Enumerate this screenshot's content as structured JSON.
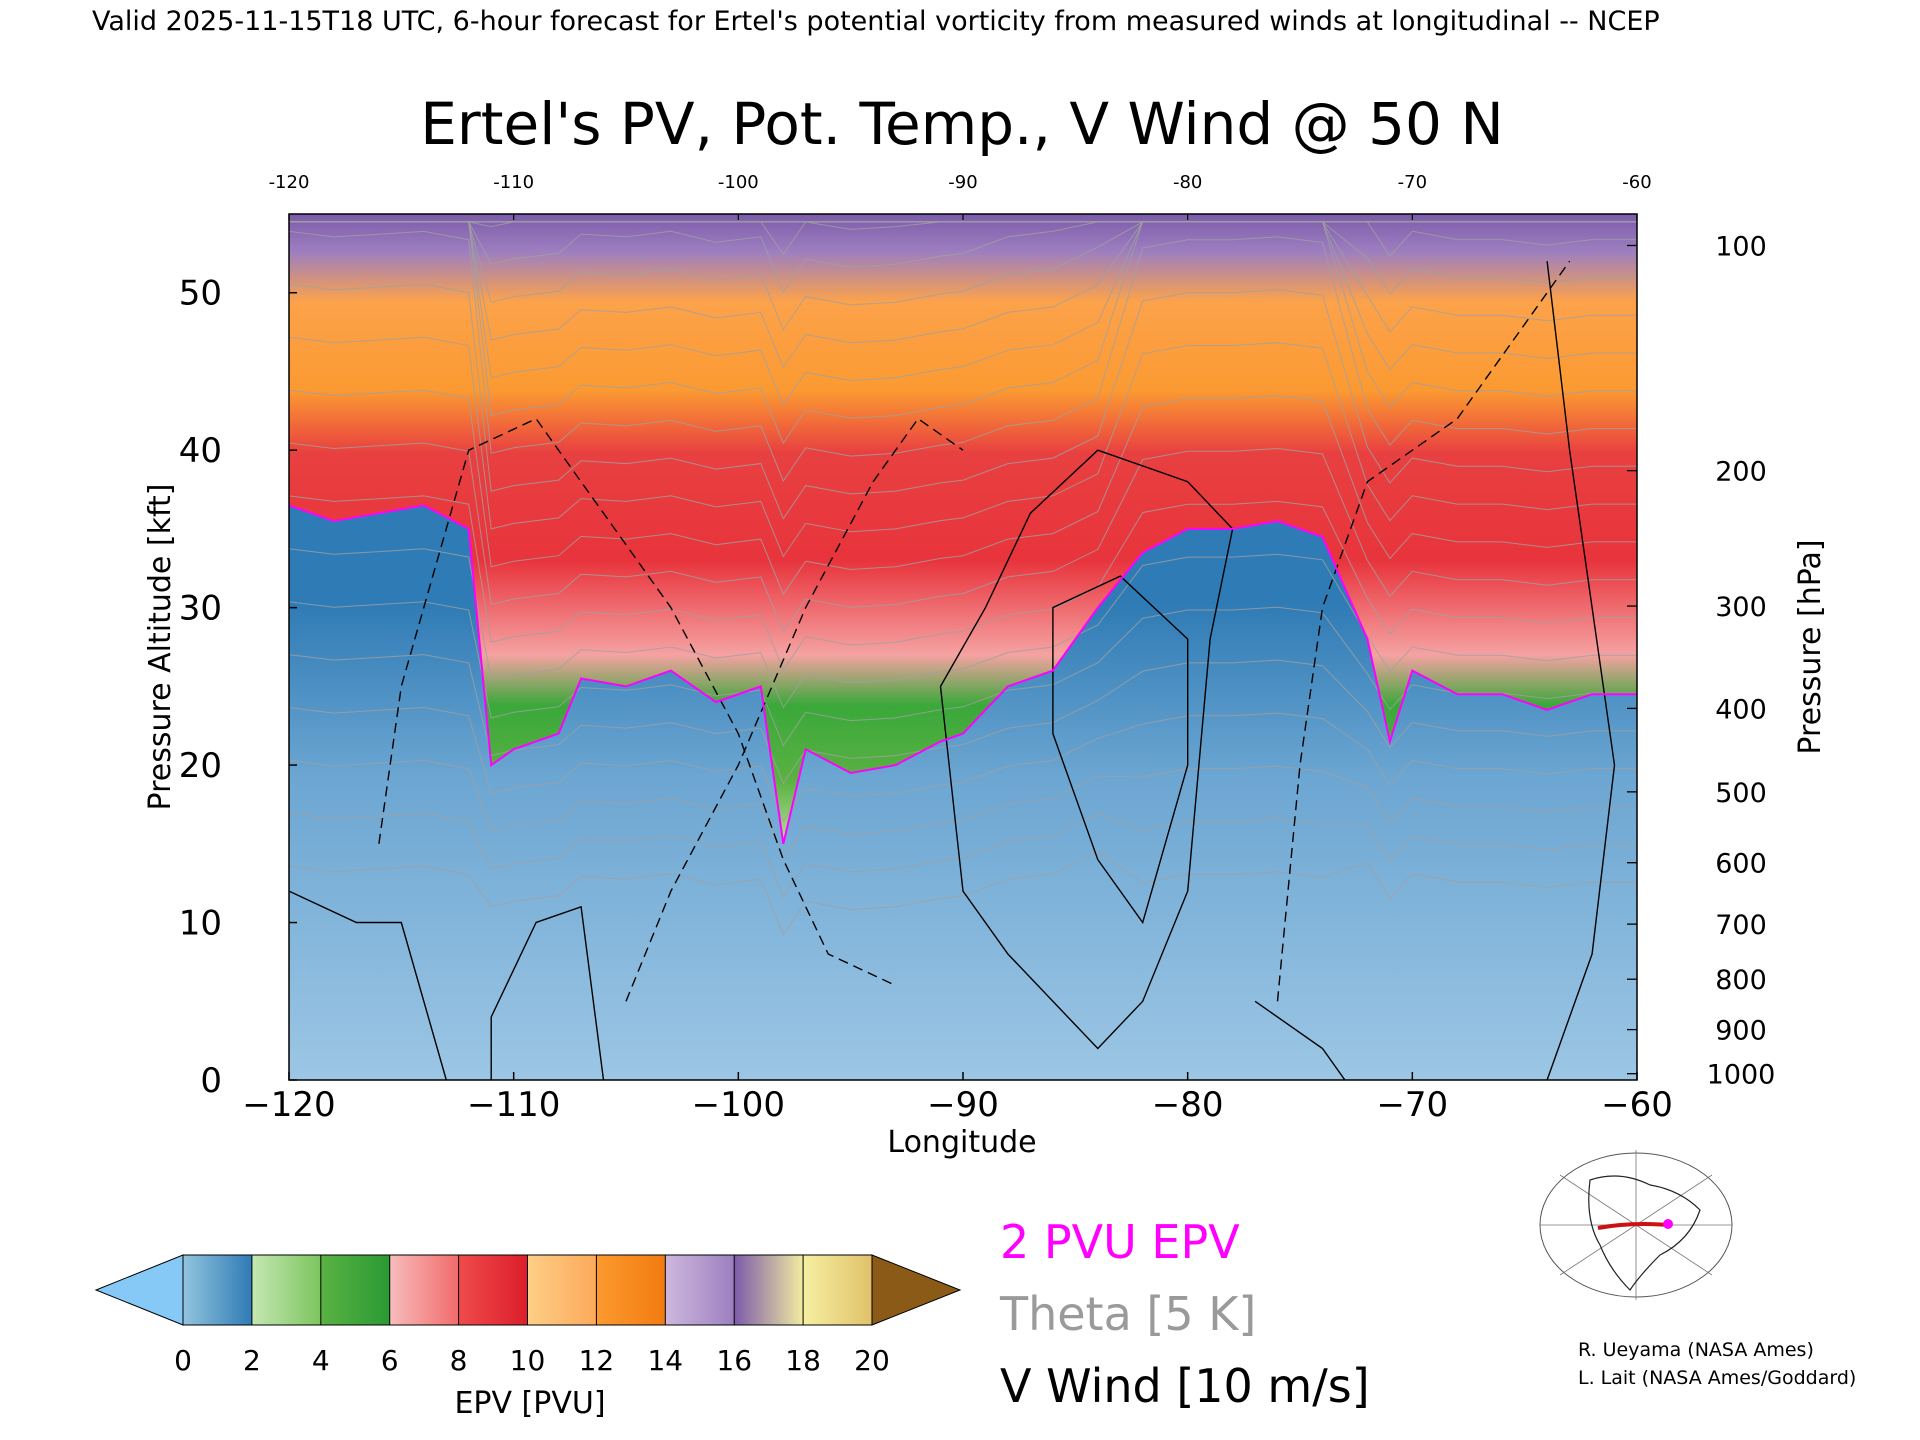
{
  "header": "Valid 2025-11-15T18 UTC, 6-hour forecast for Ertel's potential vorticity from measured winds at longitudinal -- NCEP",
  "chart_data": {
    "type": "heatmap",
    "title": "Ertel's PV, Pot. Temp., V Wind @ 50 N",
    "xlabel": "Longitude",
    "ylabel": "Pressure Altitude [kft]",
    "y2label": "Pressure [hPa]",
    "xlim": [
      -120,
      -60
    ],
    "ylim": [
      0,
      55
    ],
    "x_ticks": [
      -120,
      -110,
      -100,
      -90,
      -80,
      -70,
      -60
    ],
    "y_ticks": [
      0,
      10,
      20,
      30,
      40,
      50
    ],
    "pressure_ticks": [
      {
        "label": "100",
        "kft": 53.0
      },
      {
        "label": "200",
        "kft": 38.7
      },
      {
        "label": "300",
        "kft": 30.1
      },
      {
        "label": "400",
        "kft": 23.6
      },
      {
        "label": "500",
        "kft": 18.3
      },
      {
        "label": "600",
        "kft": 13.8
      },
      {
        "label": "700",
        "kft": 9.9
      },
      {
        "label": "800",
        "kft": 6.4
      },
      {
        "label": "900",
        "kft": 3.2
      },
      {
        "label": "1000",
        "kft": 0.4
      }
    ],
    "tropopause_2pvu_kft": [
      {
        "lon": -120,
        "kft": 36.5
      },
      {
        "lon": -118,
        "kft": 35.5
      },
      {
        "lon": -116,
        "kft": 36.0
      },
      {
        "lon": -114,
        "kft": 36.5
      },
      {
        "lon": -112,
        "kft": 35.0
      },
      {
        "lon": -111,
        "kft": 20.0
      },
      {
        "lon": -110,
        "kft": 21.0
      },
      {
        "lon": -108,
        "kft": 22.0
      },
      {
        "lon": -107,
        "kft": 25.5
      },
      {
        "lon": -105,
        "kft": 25.0
      },
      {
        "lon": -103,
        "kft": 26.0
      },
      {
        "lon": -101,
        "kft": 24.0
      },
      {
        "lon": -99,
        "kft": 25.0
      },
      {
        "lon": -98,
        "kft": 15.0
      },
      {
        "lon": -97,
        "kft": 21.0
      },
      {
        "lon": -95,
        "kft": 19.5
      },
      {
        "lon": -93,
        "kft": 20.0
      },
      {
        "lon": -91,
        "kft": 21.5
      },
      {
        "lon": -90,
        "kft": 22.0
      },
      {
        "lon": -88,
        "kft": 25.0
      },
      {
        "lon": -86,
        "kft": 26.0
      },
      {
        "lon": -84,
        "kft": 30.0
      },
      {
        "lon": -82,
        "kft": 33.5
      },
      {
        "lon": -80,
        "kft": 35.0
      },
      {
        "lon": -78,
        "kft": 35.0
      },
      {
        "lon": -76,
        "kft": 35.5
      },
      {
        "lon": -74,
        "kft": 34.5
      },
      {
        "lon": -72,
        "kft": 28.0
      },
      {
        "lon": -71,
        "kft": 21.5
      },
      {
        "lon": -70,
        "kft": 26.0
      },
      {
        "lon": -68,
        "kft": 24.5
      },
      {
        "lon": -66,
        "kft": 24.5
      },
      {
        "lon": -64,
        "kft": 23.5
      },
      {
        "lon": -62,
        "kft": 24.5
      },
      {
        "lon": -60,
        "kft": 24.5
      }
    ],
    "colorbar": {
      "label": "EPV [PVU]",
      "ticks": [
        0,
        2,
        4,
        6,
        8,
        10,
        12,
        14,
        16,
        18,
        20
      ],
      "segments": [
        {
          "from": 0,
          "to": 2,
          "colors": [
            "#92c5de",
            "#2f7bb5"
          ]
        },
        {
          "from": 2,
          "to": 4,
          "colors": [
            "#c5e7b2",
            "#7cc55e"
          ]
        },
        {
          "from": 4,
          "to": 6,
          "colors": [
            "#5ab242",
            "#2a9a34"
          ]
        },
        {
          "from": 6,
          "to": 8,
          "colors": [
            "#f8bcbc",
            "#f26b6b"
          ]
        },
        {
          "from": 8,
          "to": 10,
          "colors": [
            "#ef4b4b",
            "#dc1e2b"
          ]
        },
        {
          "from": 10,
          "to": 12,
          "colors": [
            "#fdcf87",
            "#fda95a"
          ]
        },
        {
          "from": 12,
          "to": 14,
          "colors": [
            "#fc9a2f",
            "#f27b10"
          ]
        },
        {
          "from": 14,
          "to": 16,
          "colors": [
            "#cdb8dd",
            "#9d7fc0"
          ]
        },
        {
          "from": 16,
          "to": 18,
          "colors": [
            "#7c5baa",
            "#f2eca0"
          ]
        },
        {
          "from": 18,
          "to": 20,
          "colors": [
            "#f6f0a2",
            "#e0c16a"
          ]
        }
      ],
      "under_color": "#86c8f6",
      "over_color": "#8a5a16"
    },
    "legend": [
      {
        "label": "2 PVU EPV",
        "color": "#ff00ff"
      },
      {
        "label": "Theta [5 K]",
        "color": "#9a9a9a"
      },
      {
        "label": "V Wind [10 m/s]",
        "color": "#000000"
      }
    ]
  },
  "credits": [
    "R. Ueyama (NASA Ames)",
    "L. Lait (NASA Ames/Goddard)"
  ],
  "colors": {
    "troposphere_light": "#9cc6e4",
    "troposphere_dark": "#2f7bb5",
    "green_light": "#b4e09a",
    "green": "#3aa83a",
    "pink": "#f58c8c",
    "red": "#e8343c",
    "orange": "#fb9a32",
    "purple": "#8a68b8",
    "brown": "#8a5a16",
    "pv2_contour": "#ff00ff"
  }
}
